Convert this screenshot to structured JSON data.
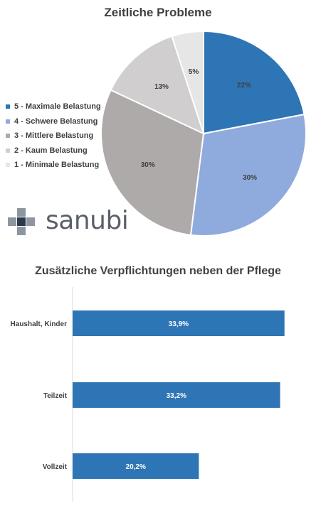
{
  "chart_data": [
    {
      "type": "pie",
      "title": "Zeitliche Probleme",
      "slices": [
        {
          "label": "5 - Maximale Belastung",
          "value": 22,
          "display": "22%",
          "color": "#2e75b6"
        },
        {
          "label": "4 - Schwere Belastung",
          "value": 30,
          "display": "30%",
          "color": "#8faadc"
        },
        {
          "label": "3 - Mittlere Belastung",
          "value": 30,
          "display": "30%",
          "color": "#aeaaaa"
        },
        {
          "label": "2 - Kaum Belastung",
          "value": 13,
          "display": "13%",
          "color": "#d0cece"
        },
        {
          "label": "1 - Minimale Belastung",
          "value": 5,
          "display": "5%",
          "color": "#e7e6e6"
        }
      ],
      "legend_position": "left"
    },
    {
      "type": "bar",
      "orientation": "horizontal",
      "title": "Zusätzliche Verpflichtungen neben der Pflege",
      "categories": [
        "Haushalt, Kinder",
        "Teilzeit",
        "Vollzeit"
      ],
      "values": [
        33.9,
        33.2,
        20.2
      ],
      "data_labels": [
        "33,9%",
        "33,2%",
        "20,2%"
      ],
      "color": "#2e75b6",
      "xlim": [
        0,
        34.5
      ]
    }
  ],
  "logo": {
    "text": "sanubi"
  }
}
